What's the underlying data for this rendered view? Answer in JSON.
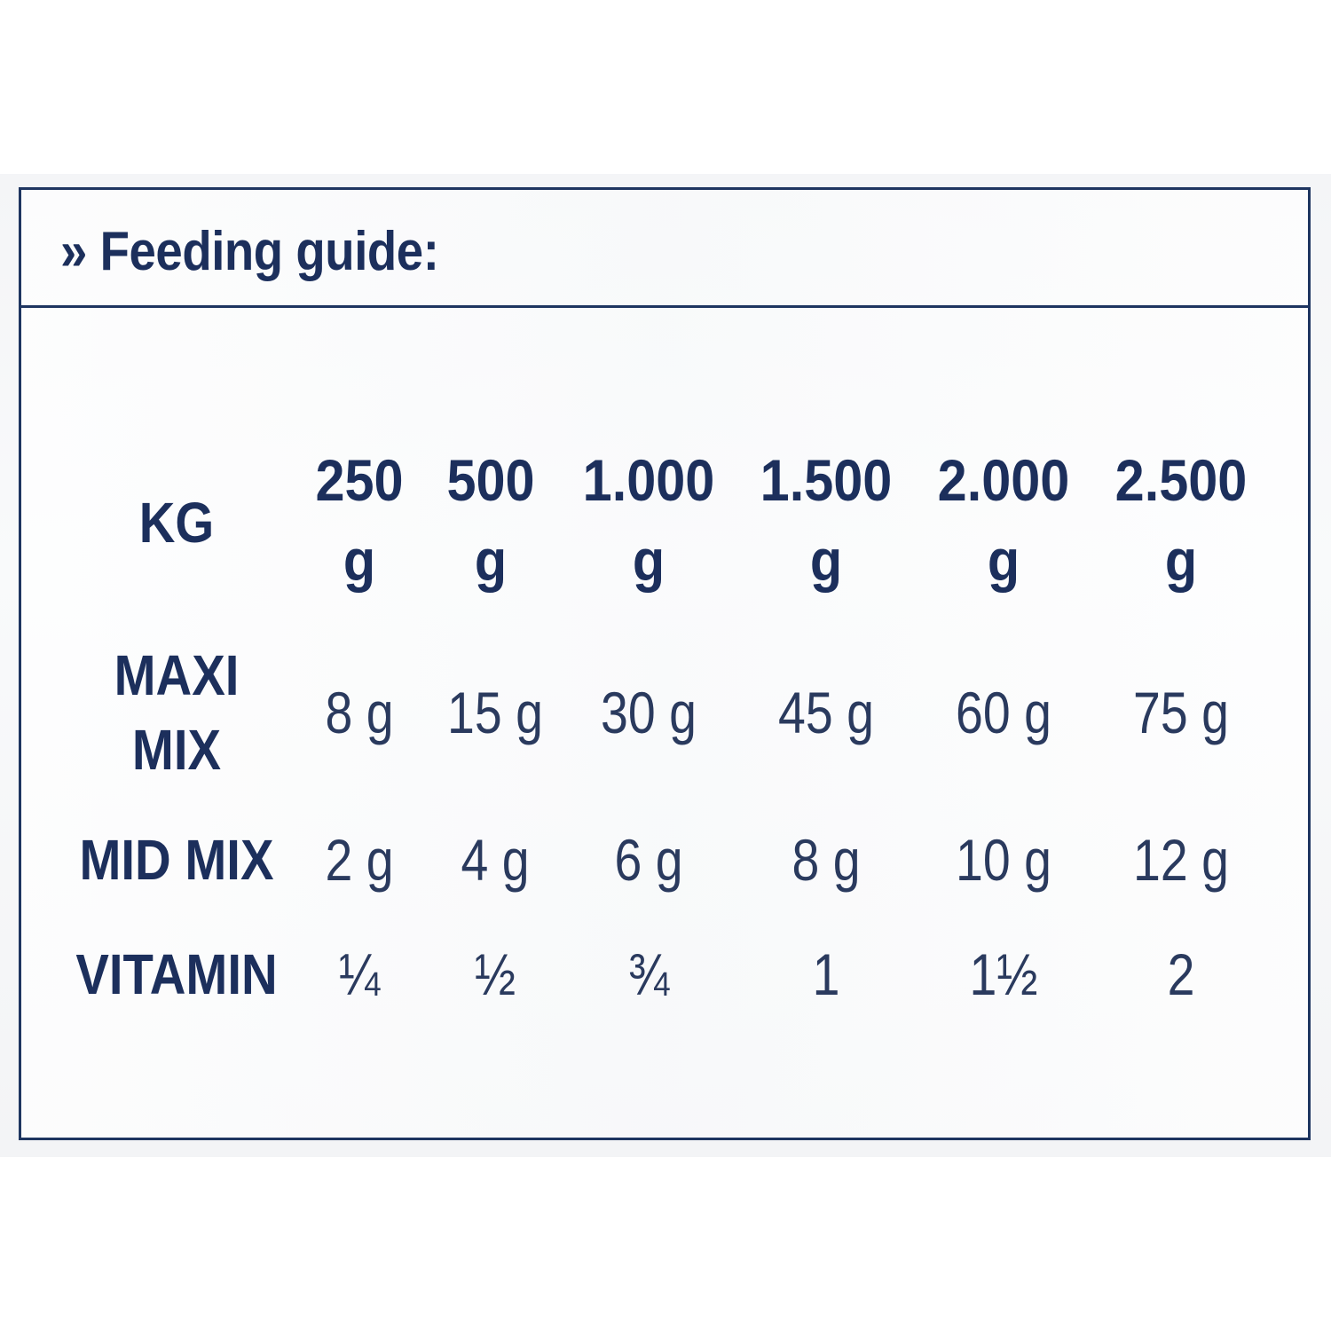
{
  "title": "» Feeding guide:",
  "header_label": "KG",
  "columns": [
    "250 g",
    "500 g",
    "1.000 g",
    "1.500 g",
    "2.000 g",
    "2.500 g"
  ],
  "rows": [
    {
      "label": "MAXI MIX",
      "values": [
        "8 g",
        "15 g",
        "30 g",
        "45 g",
        "60 g",
        "75 g"
      ]
    },
    {
      "label": "MID MIX",
      "values": [
        "2 g",
        "4 g",
        "6 g",
        "8 g",
        "10 g",
        "12 g"
      ]
    },
    {
      "label": "VITAMIN",
      "values": [
        "¼",
        "½",
        "¾",
        "1",
        "1½",
        "2"
      ]
    }
  ],
  "colors": {
    "navy": "#1c2f5c",
    "frame": "#1e3560"
  }
}
